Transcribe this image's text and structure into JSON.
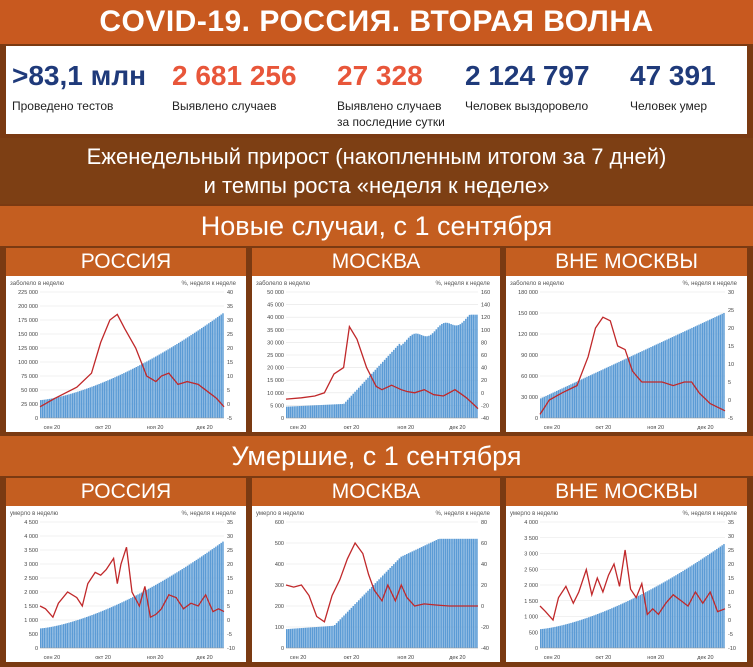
{
  "header": {
    "title": "COVID-19. РОССИЯ. ВТОРАЯ ВОЛНА"
  },
  "stats": [
    {
      "value": ">83,1 млн",
      "label": "Проведено тестов",
      "color": "#1f3a7a"
    },
    {
      "value": "2 681 256",
      "label": "Выявлено случаев",
      "color": "#e8563a"
    },
    {
      "value": "27 328",
      "label": "Выявлено случаев\nза последние сутки",
      "color": "#e8563a"
    },
    {
      "value": "2 124 797",
      "label": "Человек выздоровело",
      "color": "#1f3a7a"
    },
    {
      "value": "47 391",
      "label": "Человек умер",
      "color": "#1f3a7a"
    }
  ],
  "subtitle": {
    "line1": "Еженедельный прирост (накопленным итогом за 7 дней)",
    "line2": "и темпы роста «неделя к неделе»"
  },
  "section_cases": "Новые случаи, с 1 сентября",
  "section_deaths": "Умершие, с 1 сентября",
  "panel_titles": {
    "russia": "РОССИЯ",
    "moscow": "МОСКВА",
    "outside": "ВНЕ МОСКВЫ"
  },
  "colors": {
    "bar": "#5b9bd5",
    "line": "#c0282a"
  },
  "chart_data": [
    {
      "id": "cases-russia",
      "type": "bar",
      "ylabel_left": "заболело в неделю",
      "ylabel_right": "%, неделя к неделе",
      "y_ticks": [
        "225 000",
        "200 000",
        "175 000",
        "150 000",
        "125 000",
        "100 000",
        "75 000",
        "50 000",
        "25 000",
        "0"
      ],
      "y2_ticks": [
        "40",
        "35",
        "30",
        "25",
        "20",
        "15",
        "10",
        "5",
        "0",
        "-5"
      ],
      "x_ticks": [
        "сен 20",
        "окт 20",
        "ноя 20",
        "дек 20"
      ],
      "ylim": [
        0,
        225000
      ],
      "y2lim": [
        -5,
        40
      ],
      "bars_start": 32000,
      "bars_end": 187000,
      "bars_shape": "late",
      "line": [
        [
          0,
          -1
        ],
        [
          0.08,
          2
        ],
        [
          0.2,
          6
        ],
        [
          0.28,
          11
        ],
        [
          0.33,
          22
        ],
        [
          0.38,
          30
        ],
        [
          0.42,
          32
        ],
        [
          0.46,
          27
        ],
        [
          0.52,
          20
        ],
        [
          0.58,
          10
        ],
        [
          0.63,
          8
        ],
        [
          0.66,
          10
        ],
        [
          0.7,
          11
        ],
        [
          0.75,
          7
        ],
        [
          0.8,
          8
        ],
        [
          0.86,
          7
        ],
        [
          0.92,
          4
        ],
        [
          0.96,
          2
        ],
        [
          1,
          -1
        ]
      ]
    },
    {
      "id": "cases-moscow",
      "type": "bar",
      "ylabel_left": "заболело в неделю",
      "ylabel_right": "%, неделя к неделе",
      "y_ticks": [
        "50 000",
        "45 000",
        "40 000",
        "35 000",
        "30 000",
        "25 000",
        "20 000",
        "15 000",
        "10 000",
        "5 000",
        "0"
      ],
      "y2_ticks": [
        "160",
        "140",
        "120",
        "100",
        "80",
        "60",
        "40",
        "20",
        "0",
        "-20",
        "-40"
      ],
      "x_ticks": [
        "сен 20",
        "окт 20",
        "ноя 20",
        "дек 20"
      ],
      "ylim": [
        0,
        50000
      ],
      "y2lim": [
        -40,
        160
      ],
      "bars_start": 4500,
      "bars_end": 41000,
      "bars_shape": "moscow_cases",
      "line": [
        [
          0,
          -10
        ],
        [
          0.08,
          -8
        ],
        [
          0.15,
          -5
        ],
        [
          0.2,
          0
        ],
        [
          0.25,
          30
        ],
        [
          0.3,
          40
        ],
        [
          0.33,
          105
        ],
        [
          0.37,
          85
        ],
        [
          0.42,
          40
        ],
        [
          0.47,
          10
        ],
        [
          0.5,
          5
        ],
        [
          0.55,
          12
        ],
        [
          0.6,
          5
        ],
        [
          0.63,
          2
        ],
        [
          0.67,
          0
        ],
        [
          0.72,
          5
        ],
        [
          0.77,
          -3
        ],
        [
          0.82,
          -5
        ],
        [
          0.88,
          5
        ],
        [
          0.94,
          -8
        ],
        [
          1,
          -25
        ]
      ]
    },
    {
      "id": "cases-outside",
      "type": "bar",
      "ylabel_left": "заболело в неделю",
      "ylabel_right": "%, неделя к неделе",
      "y_ticks": [
        "180 000",
        "150 000",
        "120 000",
        "90 000",
        "60 000",
        "30 000",
        "0"
      ],
      "y2_ticks": [
        "30",
        "25",
        "20",
        "15",
        "10",
        "5",
        "0",
        "-5"
      ],
      "x_ticks": [
        "сен 20",
        "окт 20",
        "ноя 20",
        "дек 20"
      ],
      "ylim": [
        0,
        180000
      ],
      "y2lim": [
        -5,
        30
      ],
      "bars_start": 28000,
      "bars_end": 150000,
      "bars_shape": "linear",
      "line": [
        [
          0,
          -4
        ],
        [
          0.05,
          0
        ],
        [
          0.12,
          2
        ],
        [
          0.2,
          4
        ],
        [
          0.26,
          12
        ],
        [
          0.3,
          20
        ],
        [
          0.34,
          23
        ],
        [
          0.38,
          22
        ],
        [
          0.42,
          15
        ],
        [
          0.46,
          14
        ],
        [
          0.5,
          8
        ],
        [
          0.55,
          5
        ],
        [
          0.6,
          5
        ],
        [
          0.66,
          5
        ],
        [
          0.72,
          4
        ],
        [
          0.78,
          5
        ],
        [
          0.82,
          5
        ],
        [
          0.86,
          2
        ],
        [
          0.92,
          -1
        ],
        [
          0.96,
          -2
        ],
        [
          1,
          -3
        ]
      ]
    },
    {
      "id": "deaths-russia",
      "type": "bar",
      "ylabel_left": "умерло в неделю",
      "ylabel_right": "%, неделя к неделе",
      "y_ticks": [
        "4 500",
        "4 000",
        "3 500",
        "3 000",
        "2 500",
        "2 000",
        "1 500",
        "1 000",
        "500",
        "0"
      ],
      "y2_ticks": [
        "35",
        "30",
        "25",
        "20",
        "15",
        "10",
        "5",
        "0",
        "-5",
        "-10"
      ],
      "x_ticks": [
        "сен 20",
        "окт 20",
        "ноя 20",
        "дек 20"
      ],
      "ylim": [
        0,
        4500
      ],
      "y2lim": [
        -10,
        35
      ],
      "bars_start": 700,
      "bars_end": 3800,
      "bars_shape": "late",
      "line": [
        [
          0,
          5
        ],
        [
          0.03,
          4
        ],
        [
          0.07,
          1
        ],
        [
          0.1,
          6
        ],
        [
          0.15,
          10
        ],
        [
          0.2,
          8
        ],
        [
          0.23,
          5
        ],
        [
          0.26,
          13
        ],
        [
          0.3,
          17
        ],
        [
          0.33,
          16
        ],
        [
          0.36,
          18
        ],
        [
          0.4,
          22
        ],
        [
          0.42,
          13
        ],
        [
          0.44,
          20
        ],
        [
          0.47,
          26
        ],
        [
          0.5,
          10
        ],
        [
          0.54,
          5
        ],
        [
          0.57,
          12
        ],
        [
          0.6,
          1
        ],
        [
          0.63,
          2
        ],
        [
          0.66,
          4
        ],
        [
          0.7,
          9
        ],
        [
          0.74,
          8
        ],
        [
          0.78,
          4
        ],
        [
          0.82,
          6
        ],
        [
          0.86,
          5
        ],
        [
          0.9,
          9
        ],
        [
          0.94,
          3
        ],
        [
          0.97,
          4
        ],
        [
          1,
          3
        ]
      ]
    },
    {
      "id": "deaths-moscow",
      "type": "bar",
      "ylabel_left": "умерло в неделю",
      "ylabel_right": "%, неделя к неделе",
      "y_ticks": [
        "600",
        "500",
        "400",
        "300",
        "200",
        "100",
        "0"
      ],
      "y2_ticks": [
        "80",
        "60",
        "40",
        "20",
        "0",
        "-20",
        "-40"
      ],
      "x_ticks": [
        "сен 20",
        "окт 20",
        "ноя 20",
        "дек 20"
      ],
      "ylim": [
        0,
        600
      ],
      "y2lim": [
        -40,
        80
      ],
      "bars_start": 90,
      "bars_end": 520,
      "bars_shape": "moscow_deaths",
      "line": [
        [
          0,
          20
        ],
        [
          0.04,
          18
        ],
        [
          0.08,
          20
        ],
        [
          0.12,
          10
        ],
        [
          0.16,
          -10
        ],
        [
          0.2,
          -15
        ],
        [
          0.24,
          10
        ],
        [
          0.28,
          25
        ],
        [
          0.32,
          45
        ],
        [
          0.36,
          60
        ],
        [
          0.4,
          50
        ],
        [
          0.43,
          30
        ],
        [
          0.46,
          15
        ],
        [
          0.5,
          5
        ],
        [
          0.53,
          20
        ],
        [
          0.57,
          5
        ],
        [
          0.6,
          20
        ],
        [
          0.63,
          8
        ],
        [
          0.67,
          0
        ],
        [
          0.72,
          2
        ],
        [
          0.78,
          1
        ],
        [
          0.85,
          0
        ],
        [
          0.92,
          0
        ],
        [
          1,
          0
        ]
      ]
    },
    {
      "id": "deaths-outside",
      "type": "bar",
      "ylabel_left": "умерло в неделю",
      "ylabel_right": "%, неделя к неделе",
      "y_ticks": [
        "4 000",
        "3 500",
        "3 000",
        "2 500",
        "2 000",
        "1 500",
        "1 000",
        "500",
        "0"
      ],
      "y2_ticks": [
        "35",
        "30",
        "25",
        "20",
        "15",
        "10",
        "5",
        "0",
        "-5",
        "-10"
      ],
      "x_ticks": [
        "сен 20",
        "окт 20",
        "ноя 20",
        "дек 20"
      ],
      "ylim": [
        0,
        4000
      ],
      "y2lim": [
        -10,
        35
      ],
      "bars_start": 600,
      "bars_end": 3300,
      "bars_shape": "late",
      "line": [
        [
          0,
          5
        ],
        [
          0.03,
          3
        ],
        [
          0.07,
          0
        ],
        [
          0.1,
          8
        ],
        [
          0.14,
          12
        ],
        [
          0.18,
          6
        ],
        [
          0.21,
          10
        ],
        [
          0.25,
          18
        ],
        [
          0.28,
          9
        ],
        [
          0.31,
          15
        ],
        [
          0.34,
          10
        ],
        [
          0.37,
          16
        ],
        [
          0.4,
          20
        ],
        [
          0.43,
          12
        ],
        [
          0.46,
          25
        ],
        [
          0.49,
          11
        ],
        [
          0.52,
          8
        ],
        [
          0.55,
          13
        ],
        [
          0.58,
          2
        ],
        [
          0.61,
          4
        ],
        [
          0.64,
          2
        ],
        [
          0.68,
          6
        ],
        [
          0.72,
          9
        ],
        [
          0.76,
          7
        ],
        [
          0.8,
          5
        ],
        [
          0.84,
          10
        ],
        [
          0.88,
          6
        ],
        [
          0.92,
          10
        ],
        [
          0.96,
          3
        ],
        [
          1,
          4
        ]
      ]
    }
  ]
}
